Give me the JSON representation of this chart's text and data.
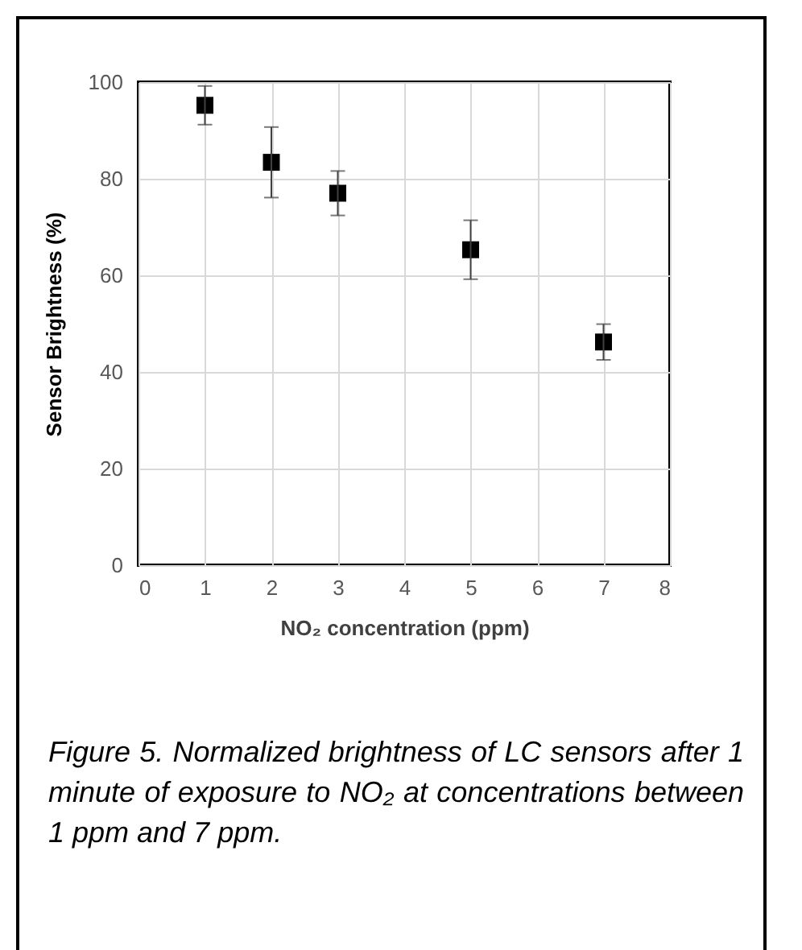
{
  "chart_data": {
    "type": "scatter",
    "xlabel": "NO₂ concentration (ppm)",
    "ylabel": "Sensor Brightness (%)",
    "x": [
      1,
      2,
      3,
      5,
      7
    ],
    "series": [
      {
        "color": "#000000",
        "values": [
          95.2,
          83.4,
          77.0,
          65.3,
          46.2
        ],
        "errors": [
          4,
          7.3,
          4.6,
          6.1,
          3.7
        ]
      }
    ],
    "xlim": [
      0,
      8
    ],
    "xticks": [
      0,
      1,
      2,
      3,
      4,
      5,
      6,
      7,
      8
    ],
    "ylim": [
      0,
      100
    ],
    "yticks": [
      0,
      20,
      40,
      60,
      80,
      100
    ],
    "grid": true,
    "marker": "square",
    "annotations": [
      "Figure 5. Normalized brightness of LC sensors after 1 minute of exposure to NO₂ at concentrations between 1 ppm and 7 ppm."
    ]
  }
}
